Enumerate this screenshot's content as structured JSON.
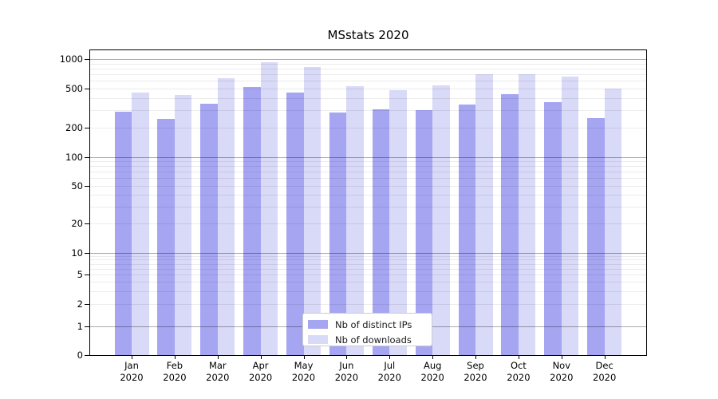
{
  "title": "MSstats 2020",
  "chart_data": {
    "type": "bar",
    "title": "MSstats 2020",
    "categories": [
      "Jan 2020",
      "Feb 2020",
      "Mar 2020",
      "Apr 2020",
      "May 2020",
      "Jun 2020",
      "Jul 2020",
      "Aug 2020",
      "Sep 2020",
      "Oct 2020",
      "Nov 2020",
      "Dec 2020"
    ],
    "series": [
      {
        "name": "Nb of distinct IPs",
        "color": "#a5a5f2",
        "values": [
          290,
          243,
          350,
          515,
          455,
          285,
          305,
          300,
          340,
          435,
          360,
          247
        ]
      },
      {
        "name": "Nb of downloads",
        "color": "#d9d9f8",
        "values": [
          455,
          427,
          640,
          925,
          825,
          530,
          485,
          535,
          695,
          700,
          665,
          500
        ]
      }
    ],
    "xlabel": "",
    "ylabel": "",
    "yscale": "symlog",
    "yticks": [
      0,
      1,
      2,
      5,
      10,
      20,
      50,
      100,
      200,
      500,
      1000
    ],
    "ylim": [
      0,
      1150
    ],
    "grid": "horizontal major + minor log gridlines, drawn over bars",
    "legend_position": "lower center"
  },
  "colors": {
    "background": "#ffffff",
    "axis": "#000000",
    "major_grid": "#ababab",
    "minor_grid": "#ececec",
    "text": "#000000"
  }
}
